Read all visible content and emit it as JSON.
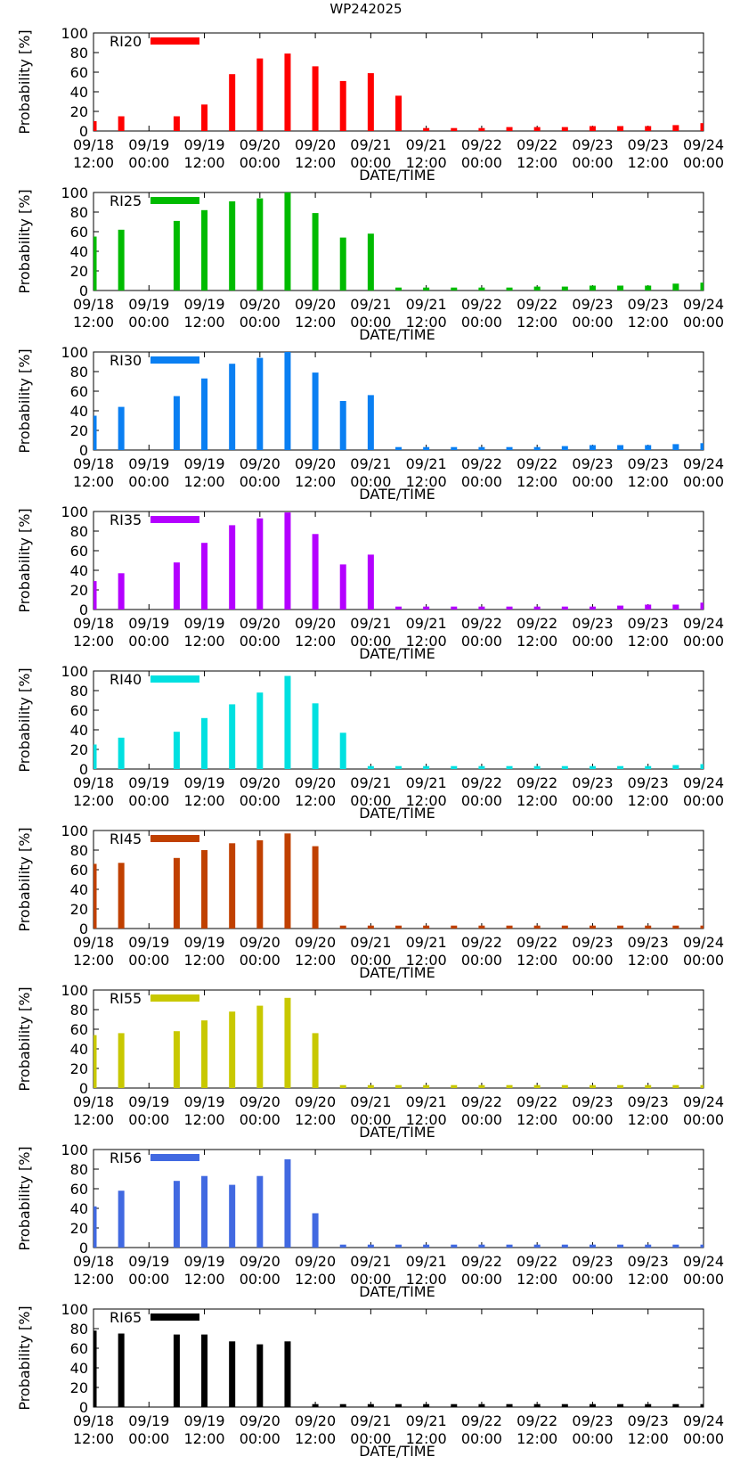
{
  "chart_data": {
    "type": "bar",
    "title": "WP242025",
    "xlabel": "DATE/TIME",
    "ylabel": "Probability [%]",
    "ylim": [
      0,
      100
    ],
    "yticks": [
      0,
      20,
      40,
      60,
      80,
      100
    ],
    "xlim_hours": [
      0,
      132
    ],
    "x_hours": [
      0,
      6,
      18,
      24,
      30,
      36,
      42,
      48,
      54,
      60,
      66,
      72,
      78,
      84,
      90,
      96,
      102,
      108,
      114,
      120,
      126,
      132
    ],
    "xtick_labels": [
      {
        "hour": 0,
        "date": "09/18",
        "time": "12:00"
      },
      {
        "hour": 12,
        "date": "09/19",
        "time": "00:00"
      },
      {
        "hour": 24,
        "date": "09/19",
        "time": "12:00"
      },
      {
        "hour": 36,
        "date": "09/20",
        "time": "00:00"
      },
      {
        "hour": 48,
        "date": "09/20",
        "time": "12:00"
      },
      {
        "hour": 60,
        "date": "09/21",
        "time": "00:00"
      },
      {
        "hour": 72,
        "date": "09/21",
        "time": "12:00"
      },
      {
        "hour": 84,
        "date": "09/22",
        "time": "00:00"
      },
      {
        "hour": 96,
        "date": "09/22",
        "time": "12:00"
      },
      {
        "hour": 108,
        "date": "09/23",
        "time": "00:00"
      },
      {
        "hour": 120,
        "date": "09/23",
        "time": "12:00"
      },
      {
        "hour": 132,
        "date": "09/24",
        "time": "00:00"
      }
    ],
    "panels": [
      {
        "name": "RI20",
        "color": "#ff0000",
        "values": [
          10,
          15,
          15,
          27,
          58,
          74,
          79,
          66,
          51,
          59,
          36,
          3,
          3,
          3,
          4,
          4,
          4,
          5,
          5,
          5,
          6,
          8
        ]
      },
      {
        "name": "RI25",
        "color": "#00bb00",
        "values": [
          55,
          62,
          71,
          82,
          91,
          94,
          100,
          79,
          54,
          58,
          3,
          3,
          3,
          3,
          3,
          4,
          4,
          5,
          5,
          5,
          7,
          8
        ]
      },
      {
        "name": "RI30",
        "color": "#0a7ff2",
        "values": [
          35,
          44,
          55,
          73,
          88,
          94,
          100,
          79,
          50,
          56,
          3,
          3,
          3,
          3,
          3,
          3,
          4,
          5,
          5,
          5,
          6,
          7
        ]
      },
      {
        "name": "RI35",
        "color": "#b400ff",
        "values": [
          29,
          37,
          48,
          68,
          86,
          93,
          99,
          77,
          46,
          56,
          3,
          3,
          3,
          3,
          3,
          3,
          3,
          3,
          4,
          5,
          5,
          7
        ]
      },
      {
        "name": "RI40",
        "color": "#00e0e0",
        "values": [
          25,
          32,
          38,
          52,
          66,
          78,
          95,
          67,
          37,
          3,
          3,
          3,
          3,
          3,
          3,
          3,
          3,
          3,
          3,
          3,
          4,
          5
        ]
      },
      {
        "name": "RI45",
        "color": "#c04000",
        "values": [
          66,
          67,
          72,
          80,
          87,
          90,
          97,
          84,
          3,
          3,
          3,
          3,
          3,
          3,
          3,
          3,
          3,
          3,
          3,
          3,
          3,
          3
        ]
      },
      {
        "name": "RI55",
        "color": "#c8c800",
        "values": [
          54,
          56,
          58,
          69,
          78,
          84,
          92,
          56,
          3,
          3,
          3,
          3,
          3,
          3,
          3,
          3,
          3,
          3,
          3,
          3,
          3,
          3
        ]
      },
      {
        "name": "RI56",
        "color": "#4169e1",
        "values": [
          42,
          58,
          68,
          73,
          64,
          73,
          90,
          35,
          3,
          3,
          3,
          3,
          3,
          3,
          3,
          3,
          3,
          3,
          3,
          3,
          3,
          3
        ]
      },
      {
        "name": "RI65",
        "color": "#000000",
        "values": [
          78,
          75,
          74,
          74,
          67,
          64,
          67,
          3,
          3,
          3,
          3,
          3,
          3,
          3,
          3,
          3,
          3,
          3,
          3,
          3,
          3,
          3
        ]
      }
    ]
  }
}
